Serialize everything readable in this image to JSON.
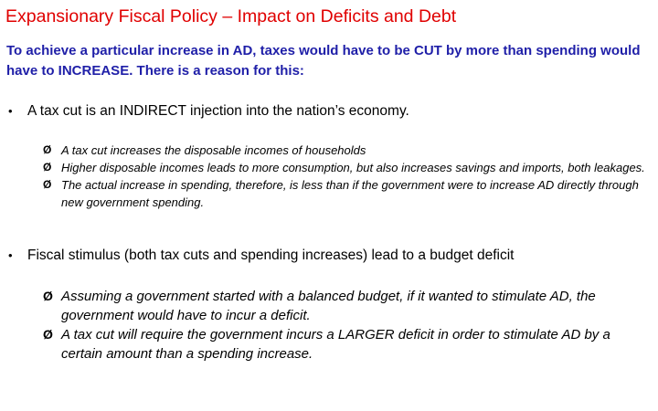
{
  "slide": {
    "title": "Expansionary Fiscal Policy – Impact on Deficits and Debt",
    "intro": "To achieve a particular increase in AD, taxes would have to be CUT by more than spending would have to INCREASE. There is a reason for this:",
    "bullet_symbol": "•",
    "arrow_symbol": "Ø",
    "bullets": [
      {
        "text": "A tax cut is an INDIRECT injection into the nation’s economy.",
        "sub_items": [
          "A tax cut increases the disposable incomes of households",
          "Higher disposable incomes leads to more consumption, but also increases savings and imports, both leakages.",
          "The actual increase in spending, therefore, is less than if the government were to increase AD directly through new government spending."
        ]
      },
      {
        "text": "Fiscal stimulus (both tax cuts and spending increases) lead to a budget deficit",
        "sub_items": [
          "Assuming a government started with a balanced budget, if it wanted to stimulate AD, the government would have to incur a deficit.",
          "A tax cut will require the government incurs a LARGER deficit in order to stimulate AD by a certain amount than a spending increase."
        ]
      }
    ],
    "colors": {
      "title": "#e00000",
      "intro": "#1f1fa8",
      "body": "#000000",
      "background": "#ffffff"
    }
  }
}
